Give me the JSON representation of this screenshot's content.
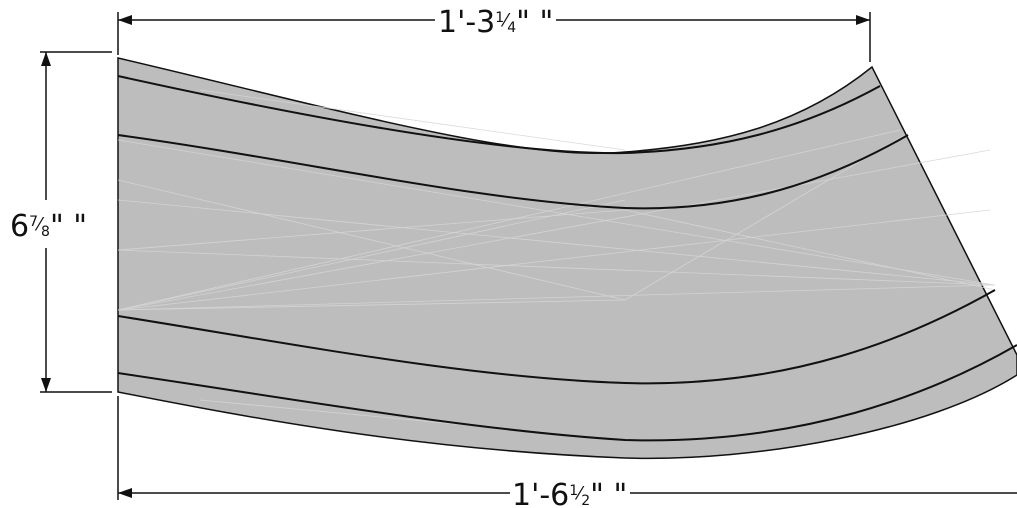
{
  "dimensions": {
    "top_width": {
      "whole": "1'-3",
      "frac_num": "1",
      "frac_den": "4",
      "suffix": "\" \""
    },
    "bottom_width": {
      "whole": "1'-6",
      "frac_num": "1",
      "frac_den": "2",
      "suffix": "\" \""
    },
    "height": {
      "whole": "6",
      "frac_num": "7",
      "frac_den": "8",
      "suffix": "\" \""
    }
  },
  "colors": {
    "fill": "#bdbdbd",
    "line": "#111111",
    "hatch": "#d6d6d6",
    "background": "#ffffff"
  }
}
